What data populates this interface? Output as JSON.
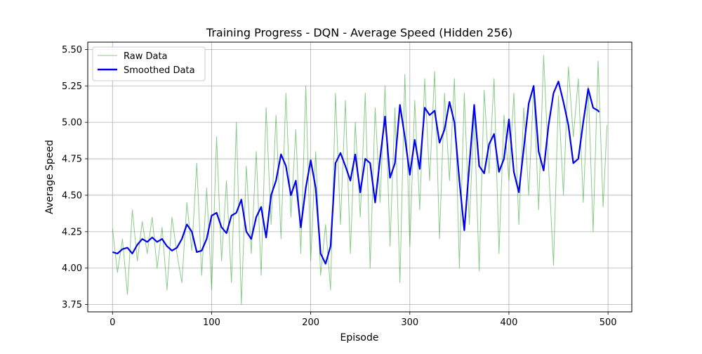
{
  "chart_data": {
    "type": "line",
    "title": "Training Progress - DQN - Average Speed (Hidden 256)",
    "xlabel": "Episode",
    "ylabel": "Average Speed",
    "xlim": [
      -25,
      524
    ],
    "ylim": [
      3.7,
      5.55
    ],
    "xticks": [
      0,
      100,
      200,
      300,
      400,
      500
    ],
    "yticks": [
      3.75,
      4.0,
      4.25,
      4.5,
      4.75,
      5.0,
      5.25,
      5.5
    ],
    "xtick_labels": [
      "0",
      "100",
      "200",
      "300",
      "400",
      "500"
    ],
    "ytick_labels": [
      "3.75",
      "4.00",
      "4.25",
      "4.50",
      "4.75",
      "5.00",
      "5.25",
      "5.50"
    ],
    "grid": true,
    "legend_position": "top-left",
    "series": [
      {
        "name": "Raw Data",
        "color": "#2ca02c",
        "style": "thin-translucent",
        "x": [
          0,
          5,
          10,
          15,
          20,
          25,
          30,
          35,
          40,
          45,
          50,
          55,
          60,
          65,
          70,
          75,
          80,
          85,
          90,
          95,
          100,
          105,
          110,
          115,
          120,
          125,
          130,
          135,
          140,
          145,
          150,
          155,
          160,
          165,
          170,
          175,
          180,
          185,
          190,
          195,
          200,
          205,
          210,
          215,
          220,
          225,
          230,
          235,
          240,
          245,
          250,
          255,
          260,
          265,
          270,
          275,
          280,
          285,
          290,
          295,
          300,
          305,
          310,
          315,
          320,
          325,
          330,
          335,
          340,
          345,
          350,
          355,
          360,
          365,
          370,
          375,
          380,
          385,
          390,
          395,
          400,
          405,
          410,
          415,
          420,
          425,
          430,
          435,
          440,
          445,
          450,
          455,
          460,
          465,
          470,
          475,
          480,
          485,
          490,
          495,
          499
        ],
        "y": [
          4.27,
          3.97,
          4.2,
          3.82,
          4.4,
          4.05,
          4.32,
          4.1,
          4.35,
          4.0,
          4.28,
          3.85,
          4.35,
          4.1,
          3.9,
          4.45,
          4.12,
          4.72,
          3.95,
          4.55,
          3.85,
          4.9,
          4.05,
          4.6,
          3.9,
          5.0,
          3.75,
          4.7,
          4.1,
          4.8,
          3.95,
          5.1,
          4.3,
          5.05,
          4.2,
          5.2,
          4.35,
          4.95,
          4.1,
          5.25,
          4.05,
          4.8,
          3.95,
          4.3,
          3.85,
          5.2,
          4.3,
          5.15,
          4.1,
          5.0,
          4.35,
          5.2,
          4.0,
          5.1,
          4.45,
          5.25,
          4.15,
          5.1,
          3.9,
          5.33,
          4.15,
          5.15,
          4.4,
          5.3,
          4.6,
          5.35,
          4.2,
          5.2,
          4.6,
          5.3,
          4.0,
          5.2,
          4.3,
          5.05,
          3.98,
          5.22,
          4.65,
          5.3,
          4.1,
          5.05,
          4.6,
          5.2,
          4.3,
          5.1,
          4.5,
          5.25,
          4.4,
          5.46,
          4.7,
          4.02,
          5.18,
          4.5,
          5.38,
          4.9,
          5.3,
          4.45,
          5.25,
          4.25,
          5.42,
          4.42,
          4.98
        ]
      },
      {
        "name": "Smoothed Data",
        "color": "#0000ee",
        "style": "bold",
        "x": [
          0,
          5,
          10,
          15,
          20,
          25,
          30,
          35,
          40,
          45,
          50,
          55,
          60,
          65,
          70,
          75,
          80,
          85,
          90,
          95,
          100,
          105,
          110,
          115,
          120,
          125,
          130,
          135,
          140,
          145,
          150,
          155,
          160,
          165,
          170,
          175,
          180,
          185,
          190,
          195,
          200,
          205,
          210,
          215,
          220,
          225,
          230,
          235,
          240,
          245,
          250,
          255,
          260,
          265,
          270,
          275,
          280,
          285,
          290,
          295,
          300,
          305,
          310,
          315,
          320,
          325,
          330,
          335,
          340,
          345,
          350,
          355,
          360,
          365,
          370,
          375,
          380,
          385,
          390,
          395,
          400,
          405,
          410,
          415,
          420,
          425,
          430,
          435,
          440,
          445,
          450,
          455,
          460,
          465,
          470,
          475,
          480,
          485,
          490,
          491
        ],
        "y": [
          4.11,
          4.1,
          4.13,
          4.14,
          4.1,
          4.16,
          4.2,
          4.18,
          4.21,
          4.18,
          4.2,
          4.15,
          4.12,
          4.14,
          4.2,
          4.3,
          4.25,
          4.11,
          4.12,
          4.2,
          4.36,
          4.38,
          4.28,
          4.24,
          4.36,
          4.38,
          4.47,
          4.25,
          4.2,
          4.35,
          4.42,
          4.21,
          4.5,
          4.6,
          4.78,
          4.7,
          4.5,
          4.6,
          4.28,
          4.55,
          4.74,
          4.55,
          4.1,
          4.03,
          4.15,
          4.72,
          4.79,
          4.7,
          4.6,
          4.78,
          4.52,
          4.75,
          4.72,
          4.45,
          4.75,
          5.04,
          4.62,
          4.72,
          5.12,
          4.9,
          4.64,
          4.88,
          4.68,
          5.1,
          5.05,
          5.08,
          4.86,
          4.95,
          5.14,
          5.0,
          4.6,
          4.26,
          4.7,
          5.12,
          4.7,
          4.65,
          4.85,
          4.92,
          4.66,
          4.75,
          5.02,
          4.66,
          4.52,
          4.82,
          5.13,
          5.25,
          4.8,
          4.67,
          4.98,
          5.2,
          5.28,
          5.14,
          4.98,
          4.72,
          4.75,
          5.0,
          5.23,
          5.1,
          5.08,
          5.07
        ]
      }
    ]
  }
}
